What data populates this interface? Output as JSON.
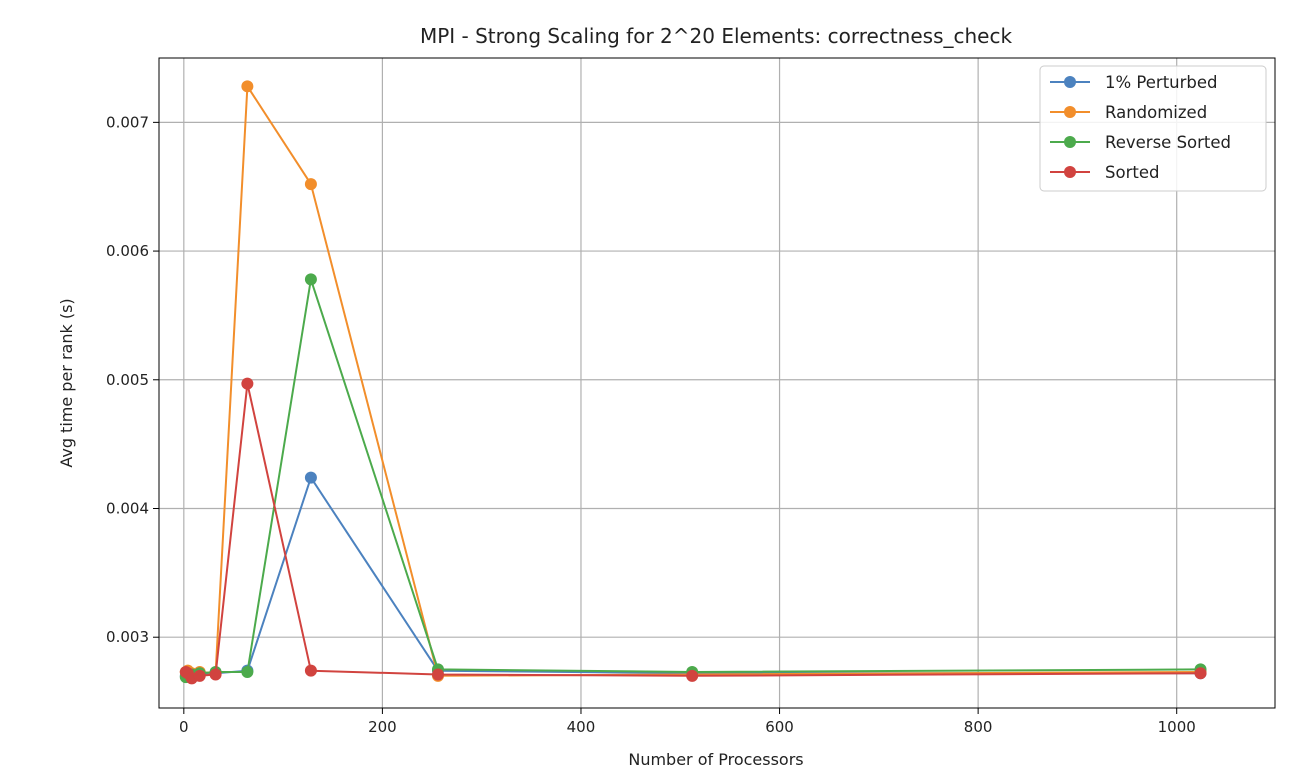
{
  "chart_data": {
    "type": "line",
    "title": "MPI - Strong Scaling for 2^20 Elements: correctness_check",
    "xlabel": "Number of Processors",
    "ylabel": "Avg time per rank (s)",
    "xlim": [
      -25,
      1099
    ],
    "ylim": [
      0.00245,
      0.0075
    ],
    "xticks": [
      0,
      200,
      400,
      600,
      800,
      1000
    ],
    "xtick_labels": [
      "0",
      "200",
      "400",
      "600",
      "800",
      "1000"
    ],
    "yticks": [
      0.003,
      0.004,
      0.005,
      0.006,
      0.007
    ],
    "ytick_labels": [
      "0.003",
      "0.004",
      "0.005",
      "0.006",
      "0.007"
    ],
    "grid": true,
    "legend_position": "top-right",
    "x": [
      2,
      4,
      8,
      16,
      32,
      64,
      128,
      256,
      512,
      1024
    ],
    "series": [
      {
        "name": "1% Perturbed",
        "color": "#4c82bf",
        "values": [
          0.0027,
          0.00271,
          0.0027,
          0.00271,
          0.00272,
          0.00274,
          0.00424,
          0.00274,
          0.00272,
          0.00272
        ]
      },
      {
        "name": "Randomized",
        "color": "#f28e2b",
        "values": [
          0.00273,
          0.00274,
          0.00272,
          0.00273,
          0.00272,
          0.00728,
          0.00652,
          0.0027,
          0.00271,
          0.00273
        ]
      },
      {
        "name": "Reverse Sorted",
        "color": "#4caa4c",
        "values": [
          0.00269,
          0.00271,
          0.00271,
          0.00272,
          0.00273,
          0.00273,
          0.00578,
          0.00275,
          0.00273,
          0.00275
        ]
      },
      {
        "name": "Sorted",
        "color": "#d1433f",
        "values": [
          0.00273,
          0.00272,
          0.00268,
          0.0027,
          0.00271,
          0.00497,
          0.00274,
          0.00271,
          0.0027,
          0.00272
        ]
      }
    ]
  }
}
